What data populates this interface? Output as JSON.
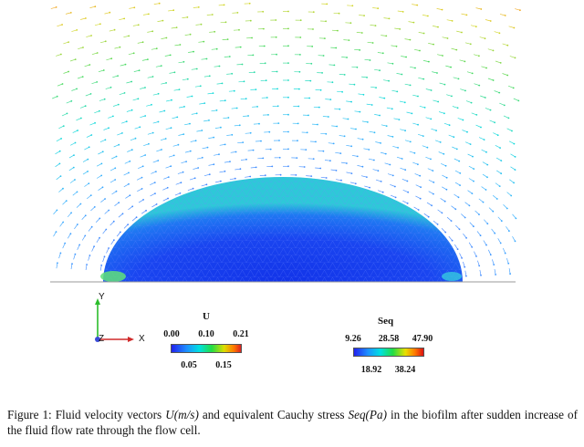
{
  "colorbars": {
    "u": {
      "title": "U",
      "upper_ticks": [
        "0.00",
        "0.10",
        "0.21"
      ],
      "lower_ticks": [
        "0.05",
        "0.15"
      ]
    },
    "seq": {
      "title": "Seq",
      "upper_ticks": [
        "9.26",
        "28.58",
        "47.90"
      ],
      "lower_ticks": [
        "18.92",
        "38.24"
      ]
    }
  },
  "axes_triad": {
    "y": "Y",
    "z": "Z",
    "x": "X"
  },
  "caption": {
    "prefix": "Figure 1: Fluid velocity vectors ",
    "u_symbol": "U(m/s)",
    "middle": " and equivalent Cauchy stress ",
    "seq_symbol": "Seq(Pa)",
    "suffix": " in the biofilm after sudden increase of the fluid flow rate through the flow cell."
  },
  "colors": {
    "biofilm_blue": "#1a3cf0",
    "biofilm_edge": "#39d38a"
  }
}
